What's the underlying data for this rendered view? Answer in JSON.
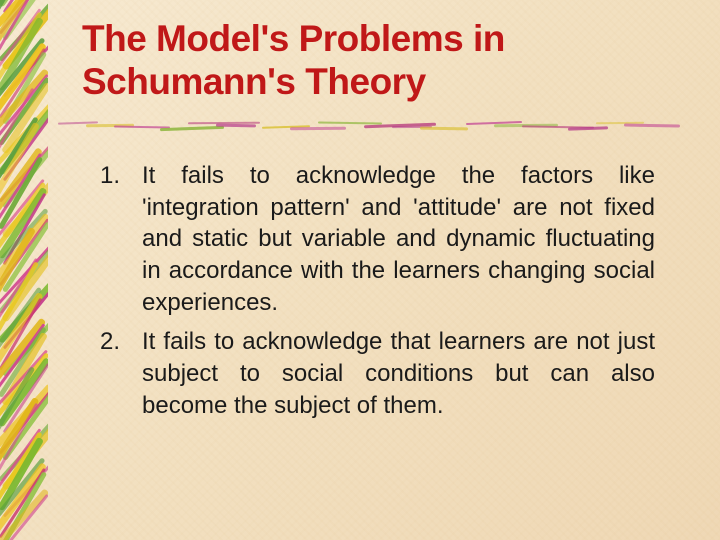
{
  "slide": {
    "title": "The Model's Problems in Schumann's Theory",
    "title_color": "#c01818",
    "title_fontsize": 37,
    "title_fontweight": 900,
    "background_gradient": [
      "#f7ead2",
      "#f2e0c0",
      "#efd8b5"
    ],
    "list_items": [
      "It fails to acknowledge the factors like 'integration pattern' and 'attitude' are not fixed and static but variable and dynamic fluctuating in accordance with the learners changing social experiences.",
      "It fails to acknowledge that learners are not just subject to social conditions but can also become the subject of them."
    ],
    "body_fontsize": 24,
    "body_color": "#1a1a1a",
    "paint_colors": [
      "#d94a8c",
      "#e8c81a",
      "#7ab82e",
      "#c43a8a",
      "#5a9e3e",
      "#edc21f",
      "#c9356e",
      "#8fc244",
      "#e0b518",
      "#d14590",
      "#6eaa3a",
      "#e5c020"
    ],
    "underline_colors": [
      "#b5398a",
      "#d9c030",
      "#c44a95",
      "#8ab53a",
      "#b83d7e"
    ]
  }
}
